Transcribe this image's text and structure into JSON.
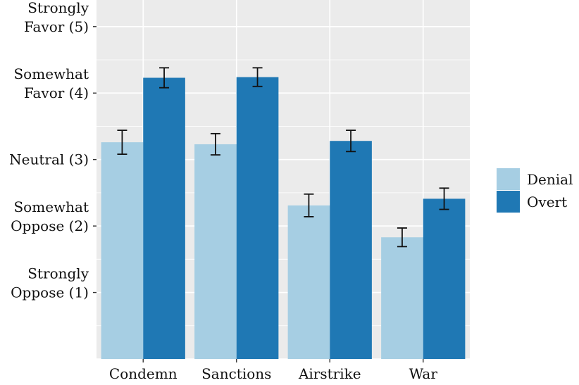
{
  "chart_data": {
    "type": "bar",
    "categories": [
      "Condemn",
      "Sanctions",
      "Airstrike",
      "War"
    ],
    "series": [
      {
        "name": "Denial",
        "color": "#a6cee3",
        "values": [
          3.26,
          3.23,
          2.31,
          1.83
        ],
        "errors": [
          0.18,
          0.16,
          0.17,
          0.14
        ]
      },
      {
        "name": "Overt",
        "color": "#1f78b4",
        "values": [
          4.23,
          4.24,
          3.28,
          2.41
        ],
        "errors": [
          0.15,
          0.14,
          0.16,
          0.16
        ]
      }
    ],
    "ylim": [
      0.0,
      5.4
    ],
    "y_ticks": [
      {
        "value": 5,
        "lines": [
          "Strongly",
          "Favor (5)"
        ]
      },
      {
        "value": 4,
        "lines": [
          "Somewhat",
          "Favor (4)"
        ]
      },
      {
        "value": 3,
        "lines": [
          "Neutral (3)"
        ]
      },
      {
        "value": 2,
        "lines": [
          "Somewhat",
          "Oppose (2)"
        ]
      },
      {
        "value": 1,
        "lines": [
          "Strongly",
          "Oppose (1)"
        ]
      }
    ],
    "grid": true,
    "legend_position": "right",
    "panel_color": "#ebebeb",
    "grid_color": "#ffffff",
    "title": "",
    "xlabel": "",
    "ylabel": ""
  }
}
